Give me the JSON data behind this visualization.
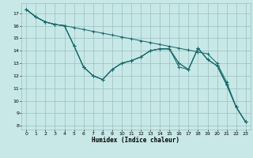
{
  "xlabel": "Humidex (Indice chaleur)",
  "xlim": [
    -0.5,
    23.5
  ],
  "ylim": [
    7.7,
    17.8
  ],
  "background_color": "#c8e8e8",
  "grid_color": "#9bbdbd",
  "line_color": "#1a6b6b",
  "yticks": [
    8,
    9,
    10,
    11,
    12,
    13,
    14,
    15,
    16,
    17
  ],
  "xticks": [
    0,
    1,
    2,
    3,
    4,
    5,
    6,
    7,
    8,
    9,
    10,
    11,
    12,
    13,
    14,
    15,
    16,
    17,
    18,
    19,
    20,
    21,
    22,
    23
  ],
  "series": [
    {
      "y": [
        17.3,
        16.7,
        16.3,
        16.1,
        16.0,
        15.85,
        15.7,
        15.55,
        15.4,
        15.25,
        15.1,
        14.95,
        14.8,
        14.65,
        14.5,
        14.35,
        14.2,
        14.05,
        13.9,
        13.75,
        13.0,
        11.5,
        9.5,
        8.3
      ]
    },
    {
      "y": [
        17.3,
        16.7,
        16.3,
        16.1,
        16.0,
        14.4,
        12.7,
        12.0,
        11.7,
        12.5,
        13.0,
        13.2,
        13.5,
        14.0,
        14.15,
        14.15,
        12.7,
        12.5,
        14.2,
        13.3,
        12.8,
        11.3,
        9.5,
        8.3
      ]
    },
    {
      "y": [
        17.3,
        16.7,
        16.3,
        16.1,
        16.0,
        14.4,
        12.7,
        12.0,
        11.7,
        12.5,
        13.0,
        13.2,
        13.5,
        14.0,
        14.15,
        14.15,
        13.0,
        12.5,
        14.2,
        13.3,
        12.8,
        11.3,
        9.5,
        8.3
      ]
    },
    {
      "y": [
        17.3,
        16.7,
        16.3,
        16.1,
        16.0,
        14.4,
        12.7,
        12.0,
        11.7,
        12.5,
        13.0,
        13.2,
        13.5,
        14.0,
        14.15,
        14.15,
        13.0,
        12.5,
        14.2,
        13.3,
        12.8,
        11.3,
        9.5,
        8.3
      ]
    }
  ]
}
